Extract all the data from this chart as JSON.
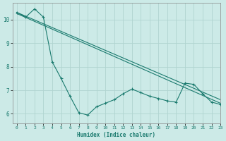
{
  "background_color": "#cceae7",
  "grid_color": "#b0d4d0",
  "line_color": "#1a7a6e",
  "x_min": -0.5,
  "x_max": 23,
  "y_min": 5.6,
  "y_max": 10.7,
  "xlabel": "Humidex (Indice chaleur)",
  "x_ticks": [
    0,
    1,
    2,
    3,
    4,
    5,
    6,
    7,
    8,
    9,
    10,
    11,
    12,
    13,
    14,
    15,
    16,
    17,
    18,
    19,
    20,
    21,
    22,
    23
  ],
  "y_ticks": [
    6,
    7,
    8,
    9,
    10
  ],
  "trend1_x": [
    0,
    23
  ],
  "trend1_y": [
    10.3,
    6.6
  ],
  "trend2_x": [
    0,
    23
  ],
  "trend2_y": [
    10.25,
    6.45
  ],
  "jagged_x": [
    0,
    1,
    2,
    3,
    4,
    5,
    6,
    7,
    8,
    9,
    10,
    11,
    12,
    13,
    14,
    15,
    16,
    17,
    18,
    19,
    20,
    21,
    22,
    23
  ],
  "jagged_y": [
    10.3,
    10.1,
    10.45,
    10.1,
    8.2,
    7.5,
    6.75,
    6.05,
    5.95,
    6.3,
    6.45,
    6.6,
    6.85,
    7.05,
    6.9,
    6.75,
    6.65,
    6.55,
    6.5,
    7.3,
    7.25,
    6.85,
    6.5,
    6.4
  ]
}
